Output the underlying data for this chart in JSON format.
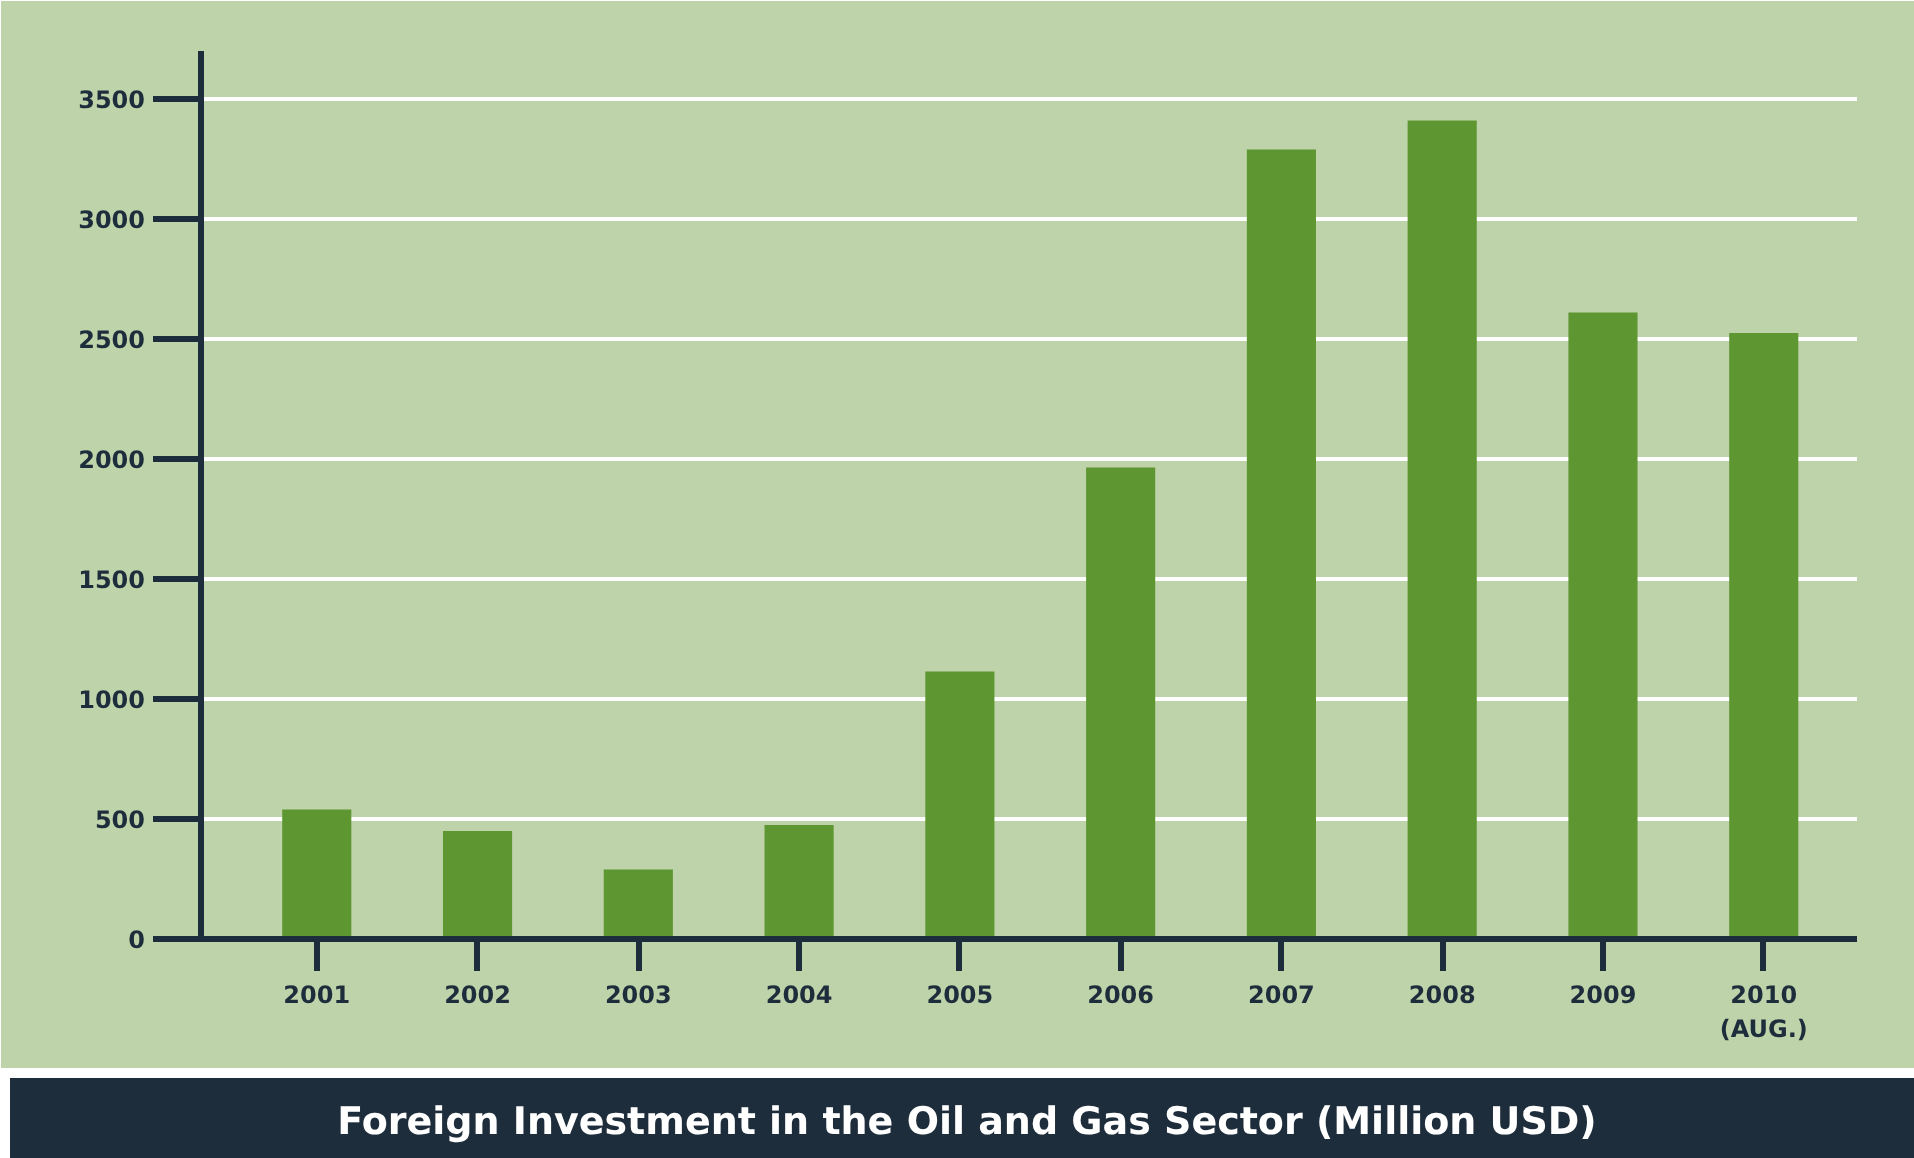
{
  "chart_data": {
    "type": "bar",
    "title": "Foreign Investment in the Oil and Gas Sector (Million USD)",
    "categories": [
      "2001",
      "2002",
      "2003",
      "2004",
      "2005",
      "2006",
      "2007",
      "2008",
      "2009",
      "2010\n(AUG.)"
    ],
    "values": [
      540,
      450,
      290,
      475,
      1115,
      1965,
      3290,
      3410,
      2610,
      2525
    ],
    "color": "#5e9732",
    "ylim": [
      0,
      3700
    ],
    "yticks": [
      0,
      500,
      1000,
      1500,
      2000,
      2500,
      3000,
      3500
    ],
    "grid": "y"
  }
}
